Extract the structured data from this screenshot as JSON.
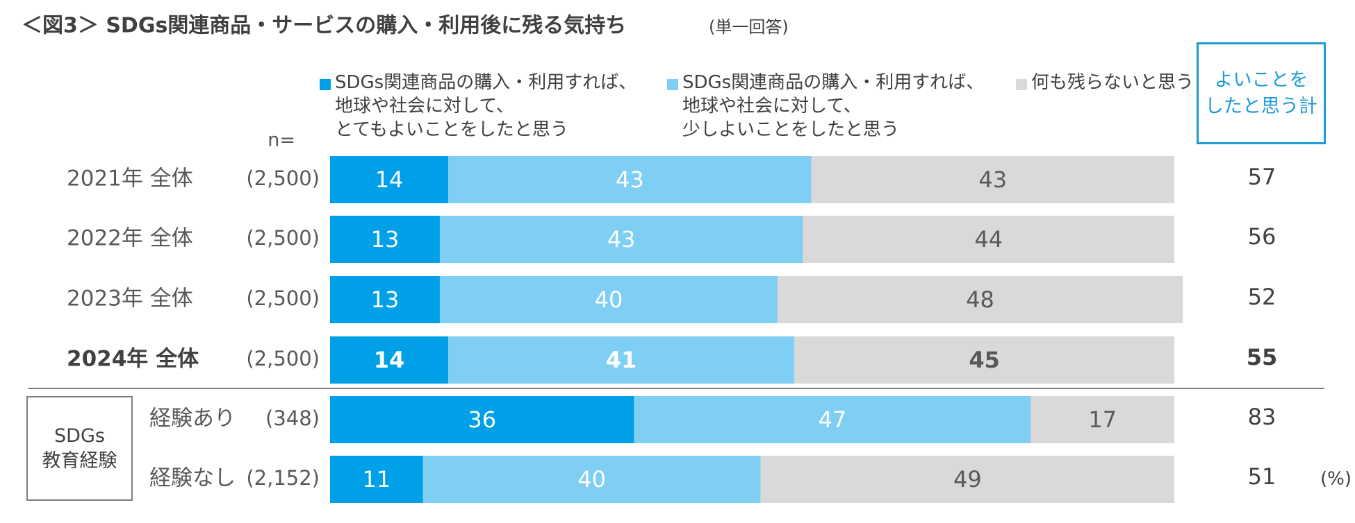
{
  "chart_data": {
    "type": "stacked-bar-horizontal",
    "title": "＜図3＞ SDGs関連商品・サービスの購入・利用後に残る気持ち",
    "subtitle": "(単一回答)",
    "n_label": "n=",
    "categories": [
      "2021年 全体",
      "2022年 全体",
      "2023年 全体",
      "2024年 全体",
      "経験あり",
      "経験なし"
    ],
    "sample_sizes": [
      "(2,500)",
      "(2,500)",
      "(2,500)",
      "(2,500)",
      "(348)",
      "(2,152)"
    ],
    "bold_category": 3,
    "group": {
      "label": "SDGs\n教育経験",
      "start": 4
    },
    "series": [
      {
        "name": "SDGs関連商品の購入・利用すれば、\n地球や社会に対して、\nとてもよいことをしたと思う",
        "color": "#00a0e9",
        "label_color": "#ffffff",
        "values": [
          14,
          13,
          13,
          14,
          36,
          11
        ]
      },
      {
        "name": "SDGs関連商品の購入・利用すれば、\n地球や社会に対して、\n少しよいことをしたと思う",
        "color": "#7fcef4",
        "label_color": "#ffffff",
        "values": [
          43,
          43,
          40,
          41,
          47,
          40
        ]
      },
      {
        "name": "何も残らないと思う",
        "color": "#d9d9d9",
        "label_color": "#595959",
        "values": [
          43,
          44,
          48,
          45,
          17,
          49
        ]
      }
    ],
    "totals": {
      "label": "よいことを\nしたと思う計",
      "values": [
        57,
        56,
        52,
        55,
        83,
        51
      ]
    },
    "unit_label": "(%)",
    "xlim": [
      0,
      100
    ]
  }
}
